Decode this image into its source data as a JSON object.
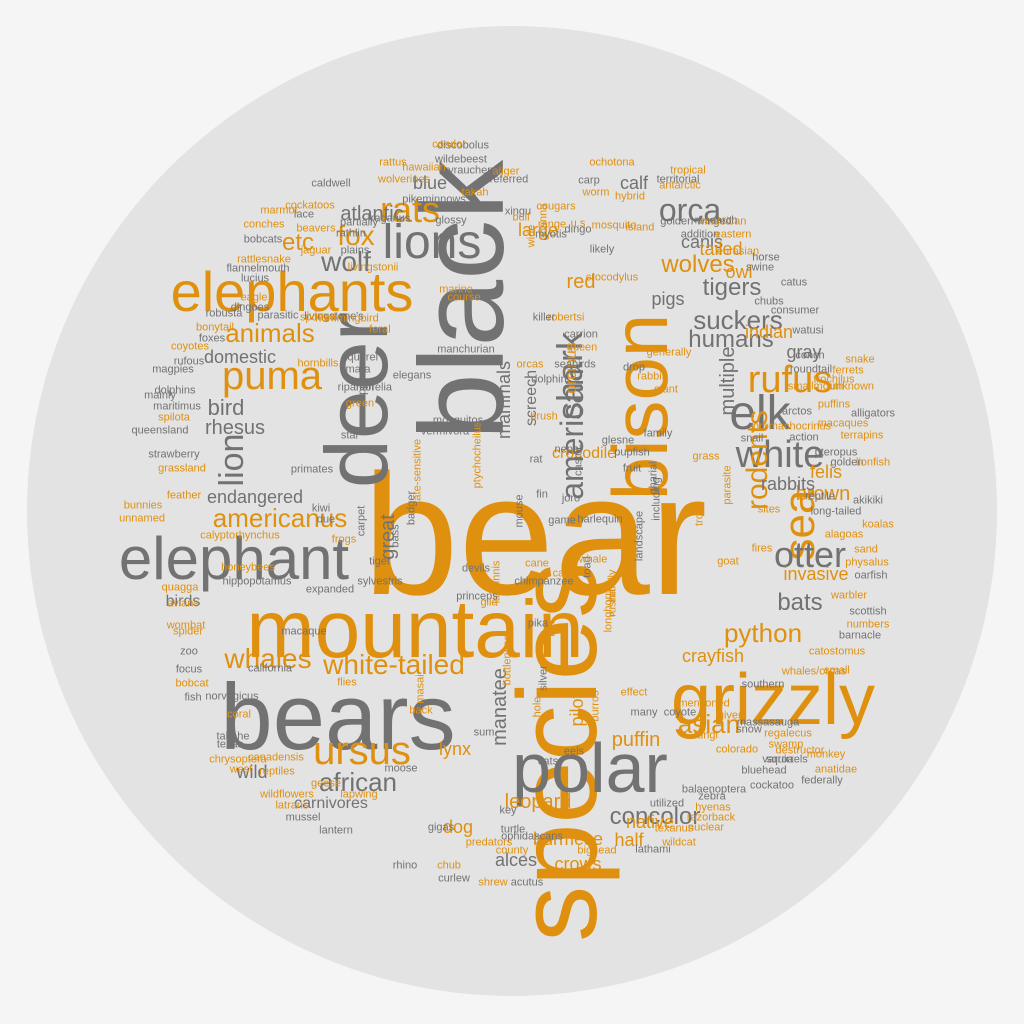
{
  "colors": {
    "orange": "#e0900f",
    "gray": "#727272",
    "disc": "#e3e3e3"
  },
  "words": [
    {
      "t": "bear",
      "c": "orange"
    },
    {
      "t": "black",
      "c": "gray"
    },
    {
      "t": "species",
      "c": "orange"
    },
    {
      "t": "bears",
      "c": "gray"
    },
    {
      "t": "mountain",
      "c": "orange"
    },
    {
      "t": "deer",
      "c": "gray"
    },
    {
      "t": "polar",
      "c": "gray"
    },
    {
      "t": "bison",
      "c": "orange"
    },
    {
      "t": "grizzly",
      "c": "orange"
    },
    {
      "t": "elephant",
      "c": "gray"
    },
    {
      "t": "elephants",
      "c": "orange"
    },
    {
      "t": "lions",
      "c": "gray"
    },
    {
      "t": "elk",
      "c": "gray"
    },
    {
      "t": "sea",
      "c": "orange"
    },
    {
      "t": "ursus",
      "c": "orange"
    },
    {
      "t": "shark",
      "c": "gray"
    },
    {
      "t": "white",
      "c": "gray"
    },
    {
      "t": "puma",
      "c": "orange"
    },
    {
      "t": "rats",
      "c": "orange"
    },
    {
      "t": "lion",
      "c": "gray"
    },
    {
      "t": "otter",
      "c": "gray"
    },
    {
      "t": "rufus",
      "c": "orange"
    },
    {
      "t": "orca",
      "c": "gray"
    },
    {
      "t": "american",
      "c": "gray"
    },
    {
      "t": "white-tailed",
      "c": "orange"
    },
    {
      "t": "wolf",
      "c": "gray"
    },
    {
      "t": "fox",
      "c": "orange"
    },
    {
      "t": "americanus",
      "c": "orange"
    },
    {
      "t": "whales",
      "c": "orange"
    },
    {
      "t": "python",
      "c": "orange"
    },
    {
      "t": "suckers",
      "c": "gray"
    },
    {
      "t": "humans",
      "c": "gray"
    },
    {
      "t": "rodents",
      "c": "orange"
    },
    {
      "t": "asian",
      "c": "orange"
    },
    {
      "t": "african",
      "c": "gray"
    },
    {
      "t": "animals",
      "c": "orange"
    },
    {
      "t": "wolves",
      "c": "orange"
    },
    {
      "t": "concolor",
      "c": "gray"
    },
    {
      "t": "tigers",
      "c": "gray"
    },
    {
      "t": "bats",
      "c": "gray"
    },
    {
      "t": "multiple",
      "c": "gray"
    },
    {
      "t": "red",
      "c": "orange"
    },
    {
      "t": "etc",
      "c": "orange"
    },
    {
      "t": "atlantic",
      "c": "gray"
    },
    {
      "t": "bird",
      "c": "gray"
    },
    {
      "t": "rhesus",
      "c": "gray"
    },
    {
      "t": "endangered",
      "c": "gray"
    },
    {
      "t": "manatee",
      "c": "gray"
    },
    {
      "t": "leopard",
      "c": "orange"
    },
    {
      "t": "puffin",
      "c": "orange"
    },
    {
      "t": "brown",
      "c": "orange"
    },
    {
      "t": "crayfish",
      "c": "orange"
    },
    {
      "t": "invasive",
      "c": "orange"
    },
    {
      "t": "felis",
      "c": "orange"
    },
    {
      "t": "rabbits",
      "c": "gray"
    },
    {
      "t": "canis",
      "c": "gray"
    },
    {
      "t": "calf",
      "c": "gray"
    },
    {
      "t": "large",
      "c": "orange"
    },
    {
      "t": "blue",
      "c": "gray"
    },
    {
      "t": "pigs",
      "c": "gray"
    },
    {
      "t": "tailed",
      "c": "orange"
    },
    {
      "t": "owl",
      "c": "orange"
    },
    {
      "t": "indian",
      "c": "orange"
    },
    {
      "t": "gray",
      "c": "gray"
    },
    {
      "t": "domestic",
      "c": "gray"
    },
    {
      "t": "crocodile",
      "c": "orange"
    },
    {
      "t": "mammals",
      "c": "gray"
    },
    {
      "t": "screech",
      "c": "gray"
    },
    {
      "t": "orcinus",
      "c": "orange"
    },
    {
      "t": "great",
      "c": "gray"
    },
    {
      "t": "lynx",
      "c": "orange"
    },
    {
      "t": "dog",
      "c": "orange"
    },
    {
      "t": "wild",
      "c": "gray"
    },
    {
      "t": "birds",
      "c": "gray"
    },
    {
      "t": "carnivores",
      "c": "gray"
    },
    {
      "t": "alces",
      "c": "gray"
    },
    {
      "t": "burmese",
      "c": "orange"
    },
    {
      "t": "half",
      "c": "orange"
    },
    {
      "t": "native",
      "c": "orange"
    },
    {
      "t": "crows",
      "c": "orange"
    },
    {
      "t": "pilot",
      "c": "orange"
    },
    {
      "t": "hippopotamus",
      "c": "gray"
    },
    {
      "t": "calyptorhynchus",
      "c": "orange"
    },
    {
      "t": "honeybees",
      "c": "orange"
    },
    {
      "t": "livingstone's",
      "c": "gray"
    },
    {
      "t": "hummingbird",
      "c": "orange"
    },
    {
      "t": "wolverines",
      "c": "orange"
    },
    {
      "t": "cockatoos",
      "c": "orange"
    },
    {
      "t": "promachocrinus",
      "c": "orange"
    },
    {
      "t": "ochotona",
      "c": "orange"
    },
    {
      "t": "golden-winged",
      "c": "gray"
    },
    {
      "t": "wildebeest",
      "c": "gray"
    },
    {
      "t": "discobolus",
      "c": "gray"
    },
    {
      "t": "pikeminnows",
      "c": "gray"
    },
    {
      "t": "xyrauchen",
      "c": "gray"
    },
    {
      "t": "territorial",
      "c": "gray"
    },
    {
      "t": "flannelmouth",
      "c": "gray"
    },
    {
      "t": "livingstonii",
      "c": "orange"
    },
    {
      "t": "rattlesnake",
      "c": "orange"
    },
    {
      "t": "state-sensitive",
      "c": "orange"
    },
    {
      "t": "ptychocheilus",
      "c": "orange"
    },
    {
      "t": "chimpanzee",
      "c": "gray"
    },
    {
      "t": "hippo",
      "c": "gray"
    },
    {
      "t": "mosquitos",
      "c": "gray"
    },
    {
      "t": "vermivora",
      "c": "gray"
    },
    {
      "t": "manchurian",
      "c": "gray"
    },
    {
      "t": "elegans",
      "c": "gray"
    },
    {
      "t": "squirrel",
      "c": "gray"
    },
    {
      "t": "primates",
      "c": "gray"
    },
    {
      "t": "kiwi",
      "c": "gray"
    },
    {
      "t": "badger",
      "c": "gray"
    },
    {
      "t": "carpet",
      "c": "gray"
    },
    {
      "t": "bass",
      "c": "gray"
    },
    {
      "t": "devils",
      "c": "gray"
    },
    {
      "t": "latipinnis",
      "c": "orange"
    },
    {
      "t": "sylvestris",
      "c": "gray"
    },
    {
      "t": "expanded",
      "c": "gray"
    },
    {
      "t": "tiger",
      "c": "gray"
    },
    {
      "t": "princeps",
      "c": "gray"
    },
    {
      "t": "gila",
      "c": "orange"
    },
    {
      "t": "pika",
      "c": "gray"
    },
    {
      "t": "cat",
      "c": "orange"
    },
    {
      "t": "game",
      "c": "gray"
    },
    {
      "t": "cane",
      "c": "orange"
    },
    {
      "t": "toad",
      "c": "gray"
    },
    {
      "t": "whale",
      "c": "orange"
    },
    {
      "t": "harlequin",
      "c": "gray"
    },
    {
      "t": "landscape",
      "c": "gray"
    },
    {
      "t": "including",
      "c": "gray"
    },
    {
      "t": "gharial",
      "c": "gray"
    },
    {
      "t": "fruit",
      "c": "gray"
    },
    {
      "t": "family",
      "c": "gray"
    },
    {
      "t": "grass",
      "c": "orange"
    },
    {
      "t": "parasite",
      "c": "orange"
    },
    {
      "t": "trout",
      "c": "orange"
    },
    {
      "t": "sites",
      "c": "orange"
    },
    {
      "t": "fires",
      "c": "orange"
    },
    {
      "t": "goat",
      "c": "orange"
    },
    {
      "t": "initially",
      "c": "orange"
    },
    {
      "t": "rusha",
      "c": "orange"
    },
    {
      "t": "longhorn",
      "c": "orange"
    },
    {
      "t": "burros",
      "c": "orange"
    },
    {
      "t": "silver",
      "c": "gray"
    },
    {
      "t": "bottlenose",
      "c": "orange"
    },
    {
      "t": "bat",
      "c": "orange"
    },
    {
      "t": "masai",
      "c": "orange"
    },
    {
      "t": "flies",
      "c": "orange"
    },
    {
      "t": "coral",
      "c": "orange"
    },
    {
      "t": "back",
      "c": "orange"
    },
    {
      "t": "hole",
      "c": "orange"
    },
    {
      "t": "sum",
      "c": "gray"
    },
    {
      "t": "cats",
      "c": "gray"
    },
    {
      "t": "eels",
      "c": "gray"
    },
    {
      "t": "moose",
      "c": "gray"
    },
    {
      "t": "key",
      "c": "gray"
    },
    {
      "t": "turtle",
      "c": "gray"
    },
    {
      "t": "ophidascans",
      "c": "gray"
    },
    {
      "t": "predators",
      "c": "orange"
    },
    {
      "t": "county",
      "c": "orange"
    },
    {
      "t": "bighead",
      "c": "orange"
    },
    {
      "t": "lathami",
      "c": "gray"
    },
    {
      "t": "lioness",
      "c": "orange"
    },
    {
      "t": "chub",
      "c": "orange"
    },
    {
      "t": "curlew",
      "c": "gray"
    },
    {
      "t": "shrew",
      "c": "orange"
    },
    {
      "t": "acutus",
      "c": "gray"
    },
    {
      "t": "rhino",
      "c": "gray"
    },
    {
      "t": "gigas",
      "c": "gray"
    },
    {
      "t": "lantern",
      "c": "gray"
    },
    {
      "t": "mussel",
      "c": "gray"
    },
    {
      "t": "latrans",
      "c": "orange"
    },
    {
      "t": "lapwing",
      "c": "orange"
    },
    {
      "t": "geese",
      "c": "orange"
    },
    {
      "t": "reptiles",
      "c": "orange"
    },
    {
      "t": "wildflowers",
      "c": "orange"
    },
    {
      "t": "canadensis",
      "c": "orange"
    },
    {
      "t": "chrysoptera",
      "c": "orange"
    },
    {
      "t": "west",
      "c": "orange"
    },
    {
      "t": "texas",
      "c": "gray"
    },
    {
      "t": "takahe",
      "c": "gray"
    },
    {
      "t": "norvegicus",
      "c": "gray"
    },
    {
      "t": "fish",
      "c": "gray"
    },
    {
      "t": "bobcat",
      "c": "orange"
    },
    {
      "t": "focus",
      "c": "gray"
    },
    {
      "t": "california",
      "c": "gray"
    },
    {
      "t": "macaque",
      "c": "gray"
    },
    {
      "t": "zoo",
      "c": "gray"
    },
    {
      "t": "spider",
      "c": "orange"
    },
    {
      "t": "wombat",
      "c": "orange"
    },
    {
      "t": "avians",
      "c": "orange"
    },
    {
      "t": "quagga",
      "c": "orange"
    },
    {
      "t": "unnamed",
      "c": "orange"
    },
    {
      "t": "bunnies",
      "c": "orange"
    },
    {
      "t": "feather",
      "c": "orange"
    },
    {
      "t": "grassland",
      "c": "orange"
    },
    {
      "t": "strawberry",
      "c": "gray"
    },
    {
      "t": "queensland",
      "c": "gray"
    },
    {
      "t": "spilota",
      "c": "orange"
    },
    {
      "t": "maritimus",
      "c": "gray"
    },
    {
      "t": "dolphins",
      "c": "gray"
    },
    {
      "t": "mainly",
      "c": "gray"
    },
    {
      "t": "magpies",
      "c": "gray"
    },
    {
      "t": "rufous",
      "c": "gray"
    },
    {
      "t": "coyotes",
      "c": "orange"
    },
    {
      "t": "foxes",
      "c": "gray"
    },
    {
      "t": "robusta",
      "c": "gray"
    },
    {
      "t": "bonytail",
      "c": "orange"
    },
    {
      "t": "parasitic",
      "c": "gray"
    },
    {
      "t": "dingoes",
      "c": "gray"
    },
    {
      "t": "eagle",
      "c": "orange"
    },
    {
      "t": "lucius",
      "c": "gray"
    },
    {
      "t": "bobcats",
      "c": "gray"
    },
    {
      "t": "conches",
      "c": "orange"
    },
    {
      "t": "marmot",
      "c": "orange"
    },
    {
      "t": "beavers",
      "c": "orange"
    },
    {
      "t": "jaguar",
      "c": "orange"
    },
    {
      "t": "rathlin",
      "c": "gray"
    },
    {
      "t": "plains",
      "c": "gray"
    },
    {
      "t": "lace",
      "c": "gray"
    },
    {
      "t": "caldwell",
      "c": "gray"
    },
    {
      "t": "partially",
      "c": "gray"
    },
    {
      "t": "rattus",
      "c": "orange"
    },
    {
      "t": "condor",
      "c": "orange"
    },
    {
      "t": "hawaiian",
      "c": "orange"
    },
    {
      "t": "referred",
      "c": "gray"
    },
    {
      "t": "aliger",
      "c": "orange"
    },
    {
      "t": "takah",
      "c": "orange"
    },
    {
      "t": "fragarius",
      "c": "gray"
    },
    {
      "t": "glossy",
      "c": "gray"
    },
    {
      "t": "xingu",
      "c": "gray"
    },
    {
      "t": "goanna",
      "c": "orange"
    },
    {
      "t": "wide",
      "c": "orange"
    },
    {
      "t": "hybrid",
      "c": "orange"
    },
    {
      "t": "antarctic",
      "c": "orange"
    },
    {
      "t": "tropical",
      "c": "orange"
    },
    {
      "t": "research",
      "c": "gray"
    },
    {
      "t": "addition",
      "c": "gray"
    },
    {
      "t": "eurasian",
      "c": "orange"
    },
    {
      "t": "marsican",
      "c": "orange"
    },
    {
      "t": "eastern",
      "c": "orange"
    },
    {
      "t": "swine",
      "c": "gray"
    },
    {
      "t": "horse",
      "c": "gray"
    },
    {
      "t": "chubs",
      "c": "gray"
    },
    {
      "t": "catus",
      "c": "gray"
    },
    {
      "t": "consumer",
      "c": "gray"
    },
    {
      "t": "watusi",
      "c": "gray"
    },
    {
      "t": "conch",
      "c": "gray"
    },
    {
      "t": "roundtail",
      "c": "gray"
    },
    {
      "t": "smallmouth",
      "c": "orange"
    },
    {
      "t": "unknown",
      "c": "orange"
    },
    {
      "t": "trochilus",
      "c": "orange"
    },
    {
      "t": "ferrets",
      "c": "orange"
    },
    {
      "t": "snake",
      "c": "orange"
    },
    {
      "t": "macaques",
      "c": "orange"
    },
    {
      "t": "puffins",
      "c": "orange"
    },
    {
      "t": "arctos",
      "c": "gray"
    },
    {
      "t": "alligators",
      "c": "gray"
    },
    {
      "t": "terrapins",
      "c": "orange"
    },
    {
      "t": "action",
      "c": "gray"
    },
    {
      "t": "snail",
      "c": "gray"
    },
    {
      "t": "pteropus",
      "c": "gray"
    },
    {
      "t": "golden",
      "c": "gray"
    },
    {
      "t": "lionfish",
      "c": "orange"
    },
    {
      "t": "reptile",
      "c": "gray"
    },
    {
      "t": "akikiki",
      "c": "gray"
    },
    {
      "t": "long-tailed",
      "c": "gray"
    },
    {
      "t": "koalas",
      "c": "orange"
    },
    {
      "t": "alagoas",
      "c": "orange"
    },
    {
      "t": "sand",
      "c": "orange"
    },
    {
      "t": "physalus",
      "c": "orange"
    },
    {
      "t": "oarfish",
      "c": "gray"
    },
    {
      "t": "scottish",
      "c": "gray"
    },
    {
      "t": "numbers",
      "c": "orange"
    },
    {
      "t": "warbler",
      "c": "orange"
    },
    {
      "t": "barnacle",
      "c": "gray"
    },
    {
      "t": "catostomus",
      "c": "orange"
    },
    {
      "t": "small",
      "c": "orange"
    },
    {
      "t": "whales/orcas",
      "c": "orange"
    },
    {
      "t": "southern",
      "c": "gray"
    },
    {
      "t": "massasauga",
      "c": "gray"
    },
    {
      "t": "regalecus",
      "c": "orange"
    },
    {
      "t": "swamp",
      "c": "orange"
    },
    {
      "t": "destructor",
      "c": "orange"
    },
    {
      "t": "monkey",
      "c": "orange"
    },
    {
      "t": "anatidae",
      "c": "orange"
    },
    {
      "t": "federally",
      "c": "gray"
    },
    {
      "t": "bluehead",
      "c": "gray"
    },
    {
      "t": "cockatoo",
      "c": "gray"
    },
    {
      "t": "zebra",
      "c": "gray"
    },
    {
      "t": "hyenas",
      "c": "orange"
    },
    {
      "t": "razorback",
      "c": "orange"
    },
    {
      "t": "texanus",
      "c": "orange"
    },
    {
      "t": "wildcat",
      "c": "orange"
    },
    {
      "t": "nuclear",
      "c": "orange"
    },
    {
      "t": "utilized",
      "c": "gray"
    },
    {
      "t": "balaenoptera",
      "c": "gray"
    },
    {
      "t": "many",
      "c": "gray"
    },
    {
      "t": "coyote",
      "c": "gray"
    },
    {
      "t": "fungi",
      "c": "orange"
    },
    {
      "t": "varroa",
      "c": "gray"
    },
    {
      "t": "given",
      "c": "orange"
    },
    {
      "t": "snow",
      "c": "gray"
    },
    {
      "t": "squirrels",
      "c": "gray"
    },
    {
      "t": "mentioned",
      "c": "orange"
    },
    {
      "t": "colorado",
      "c": "orange"
    },
    {
      "t": "effect",
      "c": "orange"
    },
    {
      "t": "mosquito",
      "c": "orange"
    },
    {
      "t": "island",
      "c": "orange"
    },
    {
      "t": "likely",
      "c": "gray"
    },
    {
      "t": "dingo",
      "c": "gray"
    },
    {
      "t": "myotis",
      "c": "gray"
    },
    {
      "t": "crocodylus",
      "c": "orange"
    },
    {
      "t": "robertsi",
      "c": "orange"
    },
    {
      "t": "killer",
      "c": "gray"
    },
    {
      "t": "queen",
      "c": "orange"
    },
    {
      "t": "generally",
      "c": "orange"
    },
    {
      "t": "giant",
      "c": "orange"
    },
    {
      "t": "rabbit",
      "c": "orange"
    },
    {
      "t": "seabirds",
      "c": "gray"
    },
    {
      "t": "dolphin",
      "c": "gray"
    },
    {
      "t": "drop",
      "c": "gray"
    },
    {
      "t": "carrion",
      "c": "gray"
    },
    {
      "t": "orcas",
      "c": "orange"
    },
    {
      "t": "brush",
      "c": "orange"
    },
    {
      "t": "nepal",
      "c": "gray"
    },
    {
      "t": "castor",
      "c": "gray"
    },
    {
      "t": "fin",
      "c": "gray"
    },
    {
      "t": "rat",
      "c": "gray"
    },
    {
      "t": "glesne",
      "c": "gray"
    },
    {
      "t": "pupfish",
      "c": "gray"
    },
    {
      "t": "joro",
      "c": "gray"
    },
    {
      "t": "mouse",
      "c": "gray"
    },
    {
      "t": "carp",
      "c": "gray"
    },
    {
      "t": "worm",
      "c": "orange"
    },
    {
      "t": "range",
      "c": "orange"
    },
    {
      "t": "bull",
      "c": "orange"
    },
    {
      "t": "cougars",
      "c": "orange"
    },
    {
      "t": "u.s",
      "c": "orange"
    },
    {
      "t": "marine",
      "c": "orange"
    },
    {
      "t": "course",
      "c": "orange"
    },
    {
      "t": "feral",
      "c": "orange"
    },
    {
      "t": "spotted",
      "c": "orange"
    },
    {
      "t": "hornbills",
      "c": "orange"
    },
    {
      "t": "mara",
      "c": "gray"
    },
    {
      "t": "green",
      "c": "orange"
    },
    {
      "t": "riparian",
      "c": "gray"
    },
    {
      "t": "morelia",
      "c": "gray"
    },
    {
      "t": "star",
      "c": "gray"
    },
    {
      "t": "due",
      "c": "gray"
    },
    {
      "t": "frogs",
      "c": "orange"
    }
  ]
}
